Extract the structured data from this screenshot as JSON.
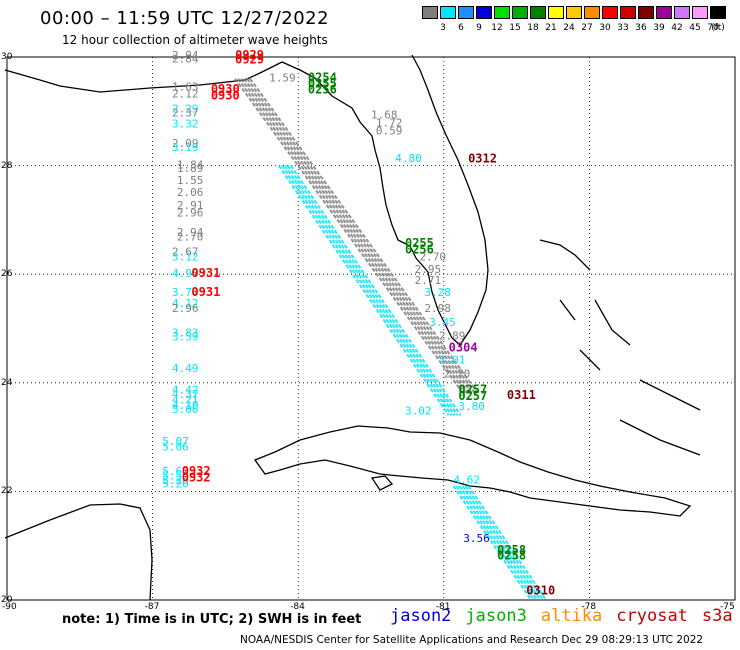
{
  "title": "00:00 – 11:59 UTC 12/27/2022",
  "subtitle": "12 hour collection of altimeter wave heights",
  "legend": {
    "unit": "(ft)",
    "bins": [
      {
        "label": "3",
        "color": "#7f7f7f"
      },
      {
        "label": "6",
        "color": "#00e5ff"
      },
      {
        "label": "9",
        "color": "#1e90ff"
      },
      {
        "label": "12",
        "color": "#0000e0"
      },
      {
        "label": "15",
        "color": "#00e000"
      },
      {
        "label": "18",
        "color": "#00b000"
      },
      {
        "label": "21",
        "color": "#008000"
      },
      {
        "label": "24",
        "color": "#ffff00"
      },
      {
        "label": "27",
        "color": "#ffc800"
      },
      {
        "label": "30",
        "color": "#ff8c00"
      },
      {
        "label": "33",
        "color": "#ff0000"
      },
      {
        "label": "36",
        "color": "#cc0000"
      },
      {
        "label": "39",
        "color": "#800000"
      },
      {
        "label": "42",
        "color": "#a000a0"
      },
      {
        "label": "45",
        "color": "#cc77ff"
      },
      {
        "label": "70",
        "color": "#ff99ff"
      },
      {
        "label": "",
        "color": "#000000"
      }
    ]
  },
  "axes": {
    "lat_labels": [
      "30",
      "28",
      "26",
      "24",
      "22",
      "20"
    ],
    "lon_labels": [
      "-90",
      "-87",
      "-84",
      "-81",
      "-78",
      "-75"
    ],
    "lat_range": [
      20,
      30
    ],
    "lon_range": [
      -90,
      -75
    ]
  },
  "times": [
    {
      "text": "0929",
      "lat": 29.96,
      "lon": -85.3,
      "color": "#ff0000"
    },
    {
      "text": "0929",
      "lat": 29.88,
      "lon": -85.3,
      "color": "#ff0000"
    },
    {
      "text": "0930",
      "lat": 29.34,
      "lon": -85.8,
      "color": "#ff0000"
    },
    {
      "text": "0930",
      "lat": 29.22,
      "lon": -85.8,
      "color": "#ff0000"
    },
    {
      "text": "0254",
      "lat": 29.55,
      "lon": -83.8,
      "color": "#008000"
    },
    {
      "text": "0255",
      "lat": 29.44,
      "lon": -83.8,
      "color": "#008000"
    },
    {
      "text": "0256",
      "lat": 29.33,
      "lon": -83.8,
      "color": "#008000"
    },
    {
      "text": "0312",
      "lat": 28.06,
      "lon": -80.5,
      "color": "#800000"
    },
    {
      "text": "0255",
      "lat": 26.5,
      "lon": -81.8,
      "color": "#008000"
    },
    {
      "text": "0256",
      "lat": 26.38,
      "lon": -81.8,
      "color": "#008000"
    },
    {
      "text": "0931",
      "lat": 25.95,
      "lon": -86.2,
      "color": "#ff0000"
    },
    {
      "text": "0931",
      "lat": 25.6,
      "lon": -86.2,
      "color": "#ff0000"
    },
    {
      "text": "0304",
      "lat": 24.58,
      "lon": -80.9,
      "color": "#a000a0"
    },
    {
      "text": "0257",
      "lat": 23.8,
      "lon": -80.7,
      "color": "#008000"
    },
    {
      "text": "0257",
      "lat": 23.68,
      "lon": -80.7,
      "color": "#008000"
    },
    {
      "text": "0311",
      "lat": 23.7,
      "lon": -79.7,
      "color": "#800000"
    },
    {
      "text": "0932",
      "lat": 22.3,
      "lon": -86.4,
      "color": "#ff0000"
    },
    {
      "text": "0932",
      "lat": 22.18,
      "lon": -86.4,
      "color": "#ff0000"
    },
    {
      "text": "0258",
      "lat": 20.85,
      "lon": -79.9,
      "color": "#008000"
    },
    {
      "text": "0258",
      "lat": 20.75,
      "lon": -79.9,
      "color": "#008000"
    },
    {
      "text": "0310",
      "lat": 20.1,
      "lon": -79.3,
      "color": "#800000"
    }
  ],
  "heights": [
    {
      "text": "2.94",
      "lat": 29.96,
      "lon": -86.6,
      "color": "#7f7f7f"
    },
    {
      "text": "2.84",
      "lat": 29.9,
      "lon": -86.6,
      "color": "#7f7f7f"
    },
    {
      "text": "1.63",
      "lat": 29.38,
      "lon": -86.6,
      "color": "#7f7f7f"
    },
    {
      "text": "2.12",
      "lat": 29.25,
      "lon": -86.6,
      "color": "#7f7f7f"
    },
    {
      "text": "2.29",
      "lat": 28.98,
      "lon": -86.6,
      "color": "#00e5ff"
    },
    {
      "text": "2.37",
      "lat": 28.9,
      "lon": -86.6,
      "color": "#7f7f7f"
    },
    {
      "text": "3.32",
      "lat": 28.7,
      "lon": -86.6,
      "color": "#00e5ff"
    },
    {
      "text": "2.09",
      "lat": 28.34,
      "lon": -86.6,
      "color": "#7f7f7f"
    },
    {
      "text": "3.19",
      "lat": 28.27,
      "lon": -86.6,
      "color": "#00e5ff"
    },
    {
      "text": "1.84",
      "lat": 27.95,
      "lon": -86.5,
      "color": "#7f7f7f"
    },
    {
      "text": "1.89",
      "lat": 27.88,
      "lon": -86.5,
      "color": "#7f7f7f"
    },
    {
      "text": "1.55",
      "lat": 27.66,
      "lon": -86.5,
      "color": "#7f7f7f"
    },
    {
      "text": "2.06",
      "lat": 27.44,
      "lon": -86.5,
      "color": "#7f7f7f"
    },
    {
      "text": "2.91",
      "lat": 27.2,
      "lon": -86.5,
      "color": "#7f7f7f"
    },
    {
      "text": "2.96",
      "lat": 27.06,
      "lon": -86.5,
      "color": "#7f7f7f"
    },
    {
      "text": "2.94",
      "lat": 26.7,
      "lon": -86.5,
      "color": "#7f7f7f"
    },
    {
      "text": "2.70",
      "lat": 26.62,
      "lon": -86.5,
      "color": "#7f7f7f"
    },
    {
      "text": "2.67",
      "lat": 26.34,
      "lon": -86.6,
      "color": "#7f7f7f"
    },
    {
      "text": "3.12",
      "lat": 26.25,
      "lon": -86.6,
      "color": "#00e5ff"
    },
    {
      "text": "4.90",
      "lat": 25.95,
      "lon": -86.6,
      "color": "#00e5ff"
    },
    {
      "text": "3.77",
      "lat": 25.6,
      "lon": -86.6,
      "color": "#00e5ff"
    },
    {
      "text": "4.12",
      "lat": 25.4,
      "lon": -86.6,
      "color": "#00e5ff"
    },
    {
      "text": "2.96",
      "lat": 25.3,
      "lon": -86.6,
      "color": "#7f7f7f"
    },
    {
      "text": "3.83",
      "lat": 24.85,
      "lon": -86.6,
      "color": "#00e5ff"
    },
    {
      "text": "3.59",
      "lat": 24.78,
      "lon": -86.6,
      "color": "#00e5ff"
    },
    {
      "text": "4.49",
      "lat": 24.2,
      "lon": -86.6,
      "color": "#00e5ff"
    },
    {
      "text": "4.42",
      "lat": 23.8,
      "lon": -86.6,
      "color": "#00e5ff"
    },
    {
      "text": "4.37",
      "lat": 23.72,
      "lon": -86.6,
      "color": "#00e5ff"
    },
    {
      "text": "4.21",
      "lat": 23.62,
      "lon": -86.6,
      "color": "#00e5ff"
    },
    {
      "text": "4.10",
      "lat": 23.52,
      "lon": -86.6,
      "color": "#00e5ff"
    },
    {
      "text": "5.06",
      "lat": 23.44,
      "lon": -86.6,
      "color": "#00e5ff"
    },
    {
      "text": "5.07",
      "lat": 22.85,
      "lon": -86.8,
      "color": "#00e5ff"
    },
    {
      "text": "5.06",
      "lat": 22.75,
      "lon": -86.8,
      "color": "#00e5ff"
    },
    {
      "text": "5.62",
      "lat": 22.3,
      "lon": -86.8,
      "color": "#00e5ff"
    },
    {
      "text": "5.56",
      "lat": 22.22,
      "lon": -86.8,
      "color": "#00e5ff"
    },
    {
      "text": "5.26",
      "lat": 22.14,
      "lon": -86.8,
      "color": "#00e5ff"
    },
    {
      "text": "5.20",
      "lat": 22.07,
      "lon": -86.8,
      "color": "#00e5ff"
    },
    {
      "text": "1.59",
      "lat": 29.55,
      "lon": -84.6,
      "color": "#7f7f7f"
    },
    {
      "text": "1.68",
      "lat": 28.87,
      "lon": -82.5,
      "color": "#7f7f7f"
    },
    {
      "text": "1.72",
      "lat": 28.72,
      "lon": -82.4,
      "color": "#7f7f7f"
    },
    {
      "text": "0.59",
      "lat": 28.57,
      "lon": -82.4,
      "color": "#7f7f7f"
    },
    {
      "text": "4.80",
      "lat": 28.07,
      "lon": -82.0,
      "color": "#00e5ff"
    },
    {
      "text": "2.70",
      "lat": 26.25,
      "lon": -81.5,
      "color": "#7f7f7f"
    },
    {
      "text": "2.95",
      "lat": 26.02,
      "lon": -81.6,
      "color": "#7f7f7f"
    },
    {
      "text": "2.71",
      "lat": 25.82,
      "lon": -81.6,
      "color": "#7f7f7f"
    },
    {
      "text": "3.28",
      "lat": 25.6,
      "lon": -81.4,
      "color": "#00e5ff"
    },
    {
      "text": "2.98",
      "lat": 25.3,
      "lon": -81.4,
      "color": "#7f7f7f"
    },
    {
      "text": "3.45",
      "lat": 25.05,
      "lon": -81.3,
      "color": "#00e5ff"
    },
    {
      "text": "2.89",
      "lat": 24.8,
      "lon": -81.1,
      "color": "#7f7f7f"
    },
    {
      "text": "3.01",
      "lat": 24.36,
      "lon": -81.1,
      "color": "#00e5ff"
    },
    {
      "text": "2.70",
      "lat": 24.1,
      "lon": -81.0,
      "color": "#7f7f7f"
    },
    {
      "text": "3.80",
      "lat": 23.5,
      "lon": -80.7,
      "color": "#00e5ff"
    },
    {
      "text": "3.02",
      "lat": 23.42,
      "lon": -81.8,
      "color": "#00e5ff"
    },
    {
      "text": "4.62",
      "lat": 22.15,
      "lon": -80.8,
      "color": "#00e5ff"
    },
    {
      "text": "3.56",
      "lat": 21.07,
      "lon": -80.6,
      "color": "#0000e0"
    }
  ],
  "note": "note:  1) Time is in UTC;  2) SWH is in feet",
  "missions": [
    {
      "name": "jason2",
      "color": "#0000e0"
    },
    {
      "name": "jason3",
      "color": "#00b000"
    },
    {
      "name": "altika",
      "color": "#ff8c00"
    },
    {
      "name": "cryosat",
      "color": "#cc0000"
    },
    {
      "name": "s3a",
      "color": "#cc0000"
    }
  ],
  "credit": "NOAA/NESDIS Center for Satellite Applications and Research    Dec 29 08:29:13 UTC 2022"
}
